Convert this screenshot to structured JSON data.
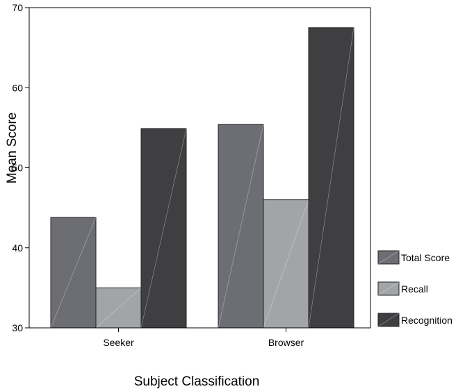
{
  "chart_data": {
    "type": "bar",
    "categories": [
      "Seeker",
      "Browser"
    ],
    "series": [
      {
        "name": "Total Score",
        "values": [
          43.8,
          55.4
        ],
        "color": "#6d6e73"
      },
      {
        "name": "Recall",
        "values": [
          35.0,
          46.0
        ],
        "color": "#a2a5a8"
      },
      {
        "name": "Recognition",
        "values": [
          54.9,
          67.5
        ],
        "color": "#3f3f42"
      }
    ],
    "xlabel": "Subject Classification",
    "ylabel": "Mean Score",
    "ylim": [
      30,
      70
    ],
    "yticks": [
      30,
      40,
      50,
      60,
      70
    ],
    "grid": false,
    "legend_position": "right"
  }
}
